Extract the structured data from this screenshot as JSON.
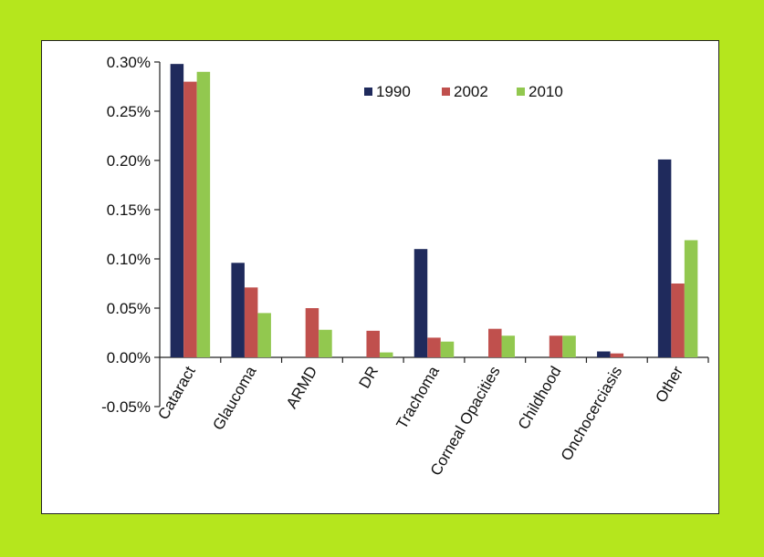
{
  "chart_data": {
    "type": "bar",
    "title": "",
    "xlabel": "",
    "ylabel": "",
    "ylim": [
      -0.05,
      0.3
    ],
    "yticks": [
      "0.30%",
      "0.25%",
      "0.20%",
      "0.15%",
      "0.10%",
      "0.05%",
      "0.00%",
      "-0.05%"
    ],
    "ytick_values": [
      0.3,
      0.25,
      0.2,
      0.15,
      0.1,
      0.05,
      0.0,
      -0.05
    ],
    "grid": false,
    "legend_position": "top-right",
    "categories": [
      "Cataract",
      "Glaucoma",
      "ARMD",
      "DR",
      "Trachoma",
      "Corneal Opacities",
      "Childhood",
      "Onchocerciasis",
      "Other"
    ],
    "series": [
      {
        "name": "1990",
        "color": "#1f2a5c",
        "values": [
          0.298,
          0.096,
          0.0,
          0.0,
          0.11,
          0.0,
          0.0,
          0.006,
          0.201
        ]
      },
      {
        "name": "2002",
        "color": "#c0504d",
        "values": [
          0.28,
          0.071,
          0.05,
          0.027,
          0.02,
          0.029,
          0.022,
          0.004,
          0.075
        ]
      },
      {
        "name": "2010",
        "color": "#92c84f",
        "values": [
          0.29,
          0.045,
          0.028,
          0.005,
          0.016,
          0.022,
          0.022,
          0.0,
          0.119
        ]
      }
    ]
  },
  "colors": {
    "background": "#b5e61d",
    "panel": "#ffffff",
    "axis": "#222222"
  }
}
